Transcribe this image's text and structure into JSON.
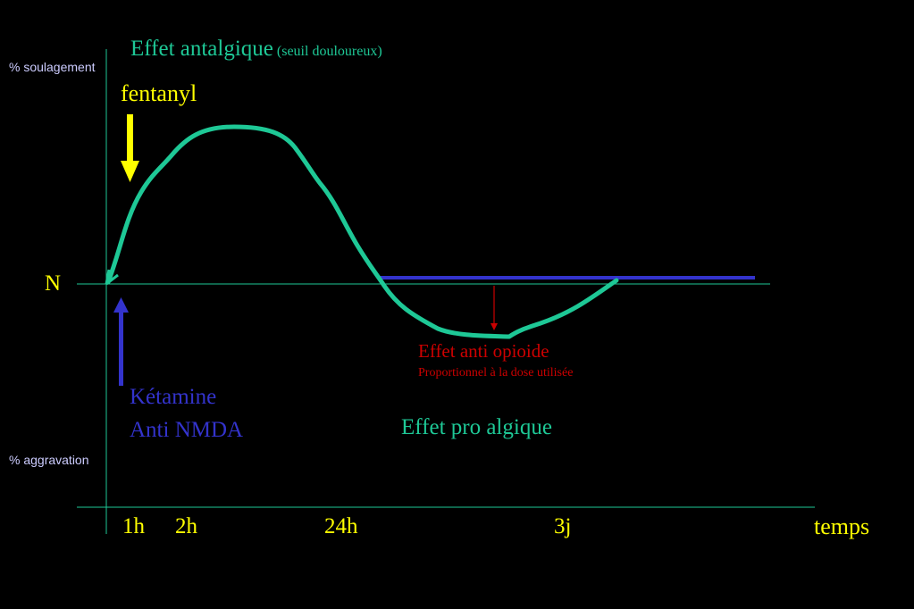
{
  "title": {
    "main": "Effet antalgique",
    "sub": "(seuil douloureux)"
  },
  "y_axis": {
    "top_label": "% soulagement",
    "bottom_label": "% aggravation",
    "baseline_label": "N"
  },
  "drugs": {
    "fentanyl": "fentanyl",
    "ketamine_line1": "Kétamine",
    "ketamine_line2": "Anti NMDA"
  },
  "annotations": {
    "anti_opioid": "Effet anti opioide",
    "anti_opioid_sub": "Proportionnel à la dose utilisée",
    "pro_algic": "Effet pro algique"
  },
  "x_axis": {
    "ticks": [
      "1h",
      "2h",
      "24h",
      "3j"
    ],
    "label": "temps"
  },
  "colors": {
    "background": "#000000",
    "curve": "#1ec896",
    "axis": "#1ec896",
    "title": "#1ec896",
    "fentanyl": "#ffff00",
    "ketamine": "#3333cc",
    "anti_opioid": "#cc0000",
    "axis_text": "#ffff00",
    "side_labels": "#ccccff"
  }
}
